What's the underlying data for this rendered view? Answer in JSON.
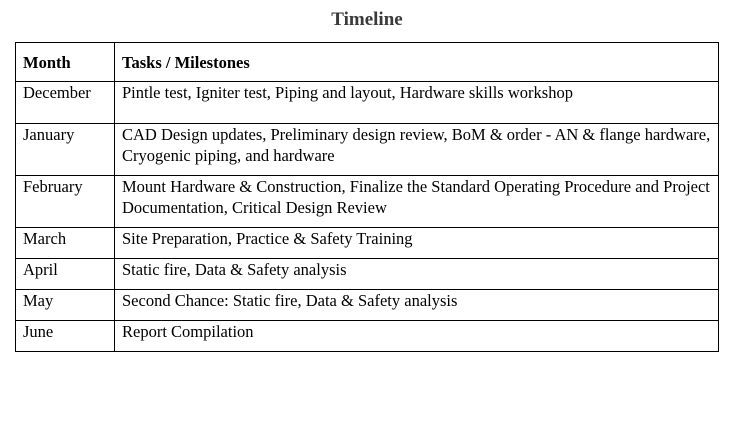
{
  "title": "Timeline",
  "table": {
    "headers": [
      "Month",
      "Tasks / Milestones"
    ],
    "rows": [
      {
        "month": "December",
        "tasks": "Pintle test, Igniter test, Piping and layout, Hardware skills workshop"
      },
      {
        "month": "January",
        "tasks": "CAD Design updates, Preliminary design review, BoM & order - AN & flange hardware, Cryogenic piping, and hardware"
      },
      {
        "month": "February",
        "tasks": "Mount Hardware & Construction, Finalize the Standard Operating Procedure and Project Documentation, Critical Design Review"
      },
      {
        "month": "March",
        "tasks": "Site Preparation, Practice & Safety Training"
      },
      {
        "month": "April",
        "tasks": "Static fire, Data & Safety analysis"
      },
      {
        "month": "May",
        "tasks": "Second Chance: Static fire, Data & Safety analysis"
      },
      {
        "month": "June",
        "tasks": "Report Compilation"
      }
    ]
  }
}
